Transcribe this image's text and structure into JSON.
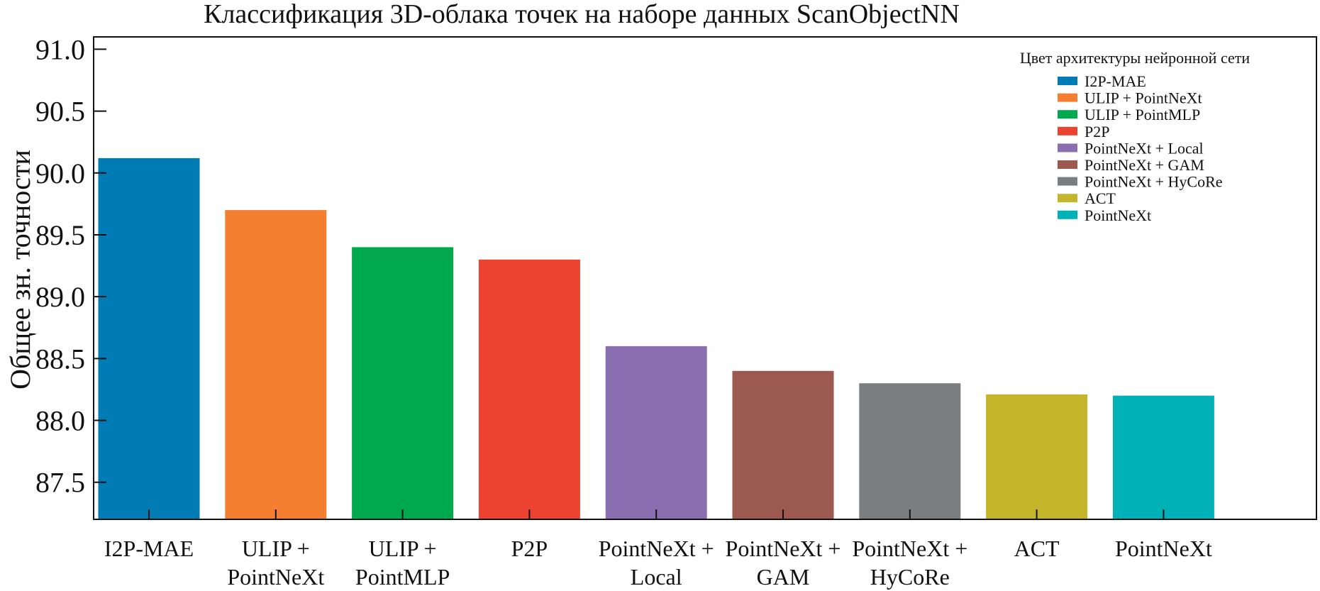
{
  "chart_data": {
    "type": "bar",
    "title": "Классификация 3D-облака точек на наборе данных ScanObjectNN",
    "xlabel": "",
    "ylabel": "Общее зн. точности",
    "ylim": [
      87.2,
      91.1
    ],
    "yticks": [
      "87.5",
      "88.0",
      "88.5",
      "89.0",
      "89.5",
      "90.0",
      "90.5",
      "91.0"
    ],
    "ytick_values": [
      87.5,
      88.0,
      88.5,
      89.0,
      89.5,
      90.0,
      90.5,
      91.0
    ],
    "grid": false,
    "legend": {
      "title": "Цвет архитектуры нейронной сети",
      "placement": "top-right",
      "entries": [
        "I2P-MAE",
        "ULIP + PointNeXt",
        "ULIP + PointMLP",
        "P2P",
        "PointNeXt + Local",
        "PointNeXt + GAM",
        "PointNeXt + HyCoRe",
        "ACT",
        "PointNeXt"
      ]
    },
    "categories": [
      [
        "I2P-MAE"
      ],
      [
        "ULIP +",
        "PointNeXt"
      ],
      [
        "ULIP +",
        "PointMLP"
      ],
      [
        "P2P"
      ],
      [
        "PointNeXt +",
        "Local"
      ],
      [
        "PointNeXt +",
        "GAM"
      ],
      [
        "PointNeXt +",
        "HyCoRe"
      ],
      [
        "ACT"
      ],
      [
        "PointNeXt"
      ]
    ],
    "values": [
      90.12,
      89.7,
      89.4,
      89.3,
      88.6,
      88.4,
      88.3,
      88.21,
      88.2
    ],
    "colors": [
      "#007bb4",
      "#f47f30",
      "#00a94e",
      "#ec4330",
      "#8a6fb0",
      "#9b5950",
      "#7b7e80",
      "#c4b52b",
      "#00b1b8"
    ]
  }
}
